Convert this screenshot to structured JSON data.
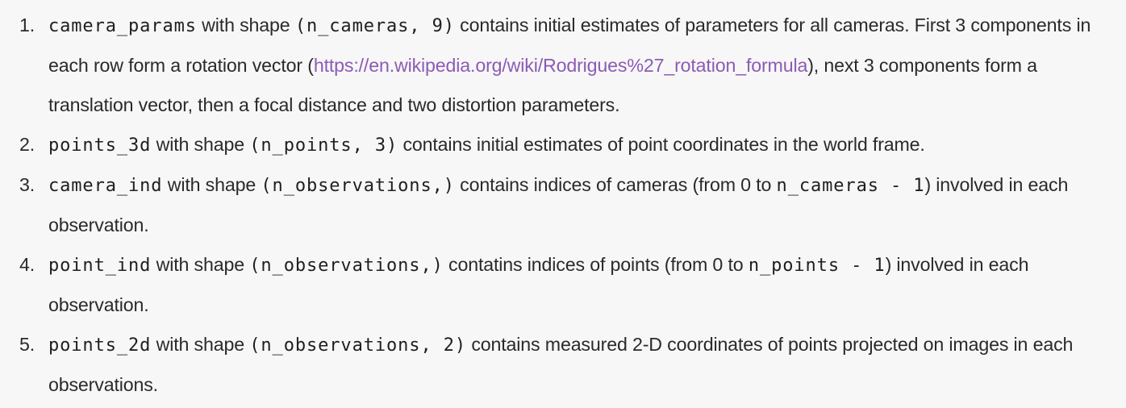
{
  "items": [
    {
      "num": "1.",
      "code": "camera_params",
      "mid1": " with shape ",
      "shape": "(n_cameras, 9)",
      "text1": " contains initial estimates of parameters for all cameras. First 3 components in each row form a rotation vector (",
      "link": "https://en.wikipedia.org/wiki/Rodrigues%27_rotation_formula",
      "text2": "), next 3 components form a translation vector, then a focal distance and two distortion parameters."
    },
    {
      "num": "2.",
      "code": "points_3d",
      "mid1": " with shape ",
      "shape": "(n_points, 3)",
      "text1": " contains initial estimates of point coordinates in the world frame."
    },
    {
      "num": "3.",
      "code": "camera_ind",
      "mid1": " with shape ",
      "shape": "(n_observations,)",
      "text1": " contains indices of cameras (from 0 to ",
      "code2": "n_cameras - 1",
      "text2": ") involved in each observation."
    },
    {
      "num": "4.",
      "code": "point_ind",
      "mid1": " with shape ",
      "shape": "(n_observations,)",
      "text1": " contatins indices of points (from 0 to ",
      "code2": "n_points - 1",
      "text2": ") involved in each observation."
    },
    {
      "num": "5.",
      "code": "points_2d",
      "mid1": " with shape ",
      "shape": "(n_observations, 2)",
      "text1": " contains measured 2-D coordinates of points projected on images in each observations."
    }
  ]
}
